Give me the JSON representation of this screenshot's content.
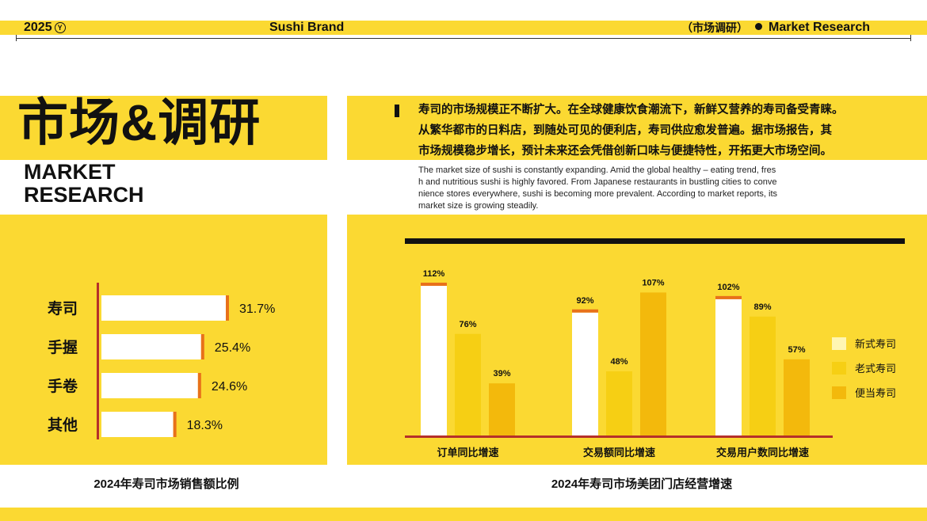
{
  "header": {
    "year": "2025",
    "year_mark": "Y",
    "brand": "Sushi Brand",
    "cn_section": "（市场调研）",
    "en_section": "Market Research"
  },
  "title": {
    "cn": "市场&调研",
    "en_line1": "MARKET",
    "en_line2": "RESEARCH"
  },
  "intro": {
    "cn_lines": [
      "寿司的市场规模正不断扩大。在全球健康饮食潮流下，新鲜又营养的寿司备受青睐。",
      "从繁华都市的日料店，到随处可见的便利店，寿司供应愈发普遍。据市场报告，其",
      "市场规模稳步增长，预计未来还会凭借创新口味与便捷特性，开拓更大市场空间。"
    ],
    "en_lines": [
      "The market size of sushi is constantly expanding. Amid the global healthy – eating trend, fres",
      "h and nutritious sushi is highly favored. From Japanese restaurants in bustling cities to conve",
      "nience stores everywhere, sushi is becoming more prevalent. According to market reports, its",
      " market size is growing steadily."
    ]
  },
  "colors": {
    "brand_yellow": "#fbd932",
    "accent_orange": "#e8711a",
    "axis_red": "#b5302a",
    "series_new": "#fff6b3",
    "series_old": "#f6cf14",
    "series_bento": "#f3b90c"
  },
  "chart_data": [
    {
      "type": "bar",
      "orientation": "horizontal",
      "caption": "2024年寿司市场销售额比例",
      "categories": [
        "寿司",
        "手握",
        "手卷",
        "其他"
      ],
      "values": [
        31.7,
        25.4,
        24.6,
        18.3
      ],
      "value_labels": [
        "31.7%",
        "25.4%",
        "24.6%",
        "18.3%"
      ],
      "xlim": [
        0,
        35
      ],
      "grid": false
    },
    {
      "type": "bar",
      "orientation": "vertical",
      "caption": "2024年寿司市场美团门店经营增速",
      "categories": [
        "订单同比增速",
        "交易额同比增速",
        "交易用户数同比增速"
      ],
      "series": [
        {
          "name": "新式寿司",
          "values": [
            112,
            92,
            102
          ],
          "labels": [
            "112%",
            "92%",
            "102%"
          ]
        },
        {
          "name": "老式寿司",
          "values": [
            76,
            48,
            89
          ],
          "labels": [
            "76%",
            "48%",
            "89%"
          ]
        },
        {
          "name": "便当寿司",
          "values": [
            39,
            107,
            57
          ],
          "labels": [
            "39%",
            "107%",
            "57%"
          ]
        }
      ],
      "ylim": [
        0,
        120
      ],
      "legend": "right",
      "grid": false
    }
  ]
}
